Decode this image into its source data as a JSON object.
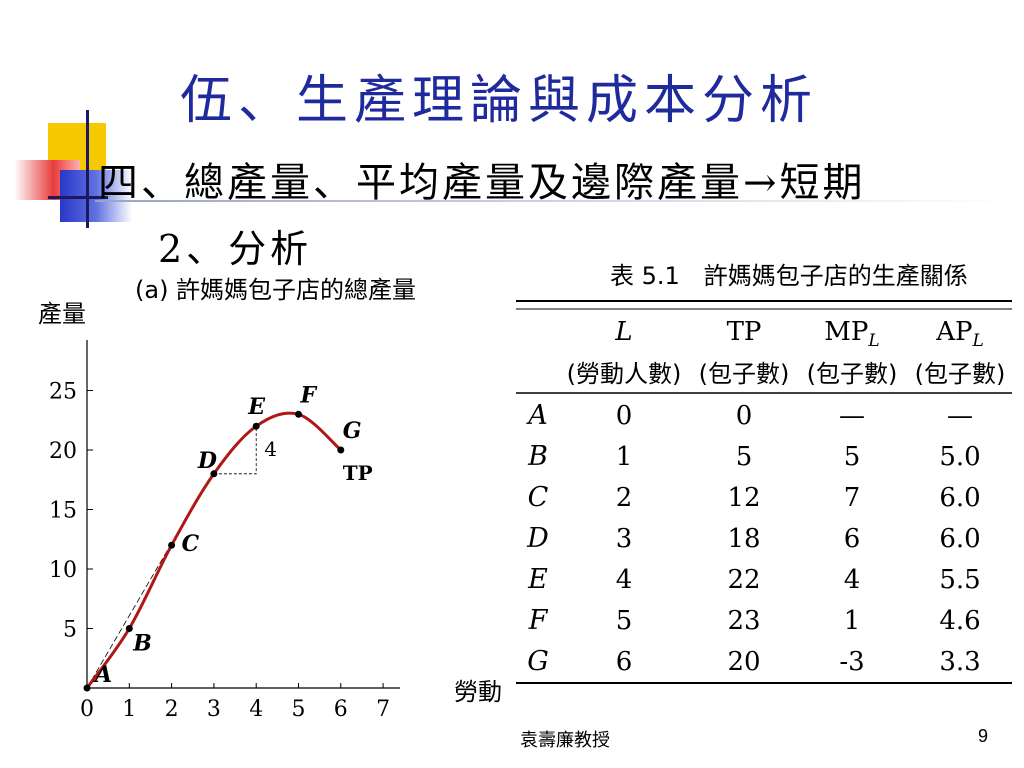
{
  "slide": {
    "title": "伍、生產理論與成本分析",
    "subtitle": "四、總產量、平均產量及邊際產量→短期",
    "section": "2、分析",
    "author": "袁壽廉教授",
    "page_number": "9",
    "title_color": "#1f2a9c"
  },
  "chart_data": [
    {
      "type": "line",
      "title": "(a) 許媽媽包子店的總產量",
      "ylabel": "產量",
      "xlabel": "勞動",
      "xlim": [
        0,
        7.5
      ],
      "ylim": [
        0,
        28
      ],
      "x_ticks": [
        0,
        1,
        2,
        3,
        4,
        5,
        6,
        7
      ],
      "y_ticks": [
        5,
        10,
        15,
        20,
        25
      ],
      "series": [
        {
          "name": "TP",
          "color": "#b01818",
          "points": [
            {
              "label": "A",
              "x": 0,
              "y": 0
            },
            {
              "label": "B",
              "x": 1,
              "y": 5
            },
            {
              "label": "C",
              "x": 2,
              "y": 12
            },
            {
              "label": "D",
              "x": 3,
              "y": 18
            },
            {
              "label": "E",
              "x": 4,
              "y": 22
            },
            {
              "label": "F",
              "x": 5,
              "y": 23
            },
            {
              "label": "G",
              "x": 6,
              "y": 20
            }
          ]
        }
      ],
      "annotations": [
        {
          "text": "4",
          "note": "slope triangle D→E"
        }
      ]
    },
    {
      "type": "table",
      "title": "表 5.1　許媽媽包子店的生產關係",
      "headers": [
        {
          "main": "L",
          "sub": "(勞動人數)"
        },
        {
          "main": "TP",
          "sub": "(包子數)"
        },
        {
          "main": "MP",
          "main_sub": "L",
          "sub": "(包子數)"
        },
        {
          "main": "AP",
          "main_sub": "L",
          "sub": "(包子數)"
        }
      ],
      "rows": [
        {
          "label": "A",
          "cells": [
            "0",
            "0",
            "—",
            "—"
          ]
        },
        {
          "label": "B",
          "cells": [
            "1",
            "5",
            "5",
            "5.0"
          ]
        },
        {
          "label": "C",
          "cells": [
            "2",
            "12",
            "7",
            "6.0"
          ]
        },
        {
          "label": "D",
          "cells": [
            "3",
            "18",
            "6",
            "6.0"
          ]
        },
        {
          "label": "E",
          "cells": [
            "4",
            "22",
            "4",
            "5.5"
          ]
        },
        {
          "label": "F",
          "cells": [
            "5",
            "23",
            "1",
            "4.6"
          ]
        },
        {
          "label": "G",
          "cells": [
            "6",
            "20",
            "-3",
            "3.3"
          ]
        }
      ]
    }
  ]
}
